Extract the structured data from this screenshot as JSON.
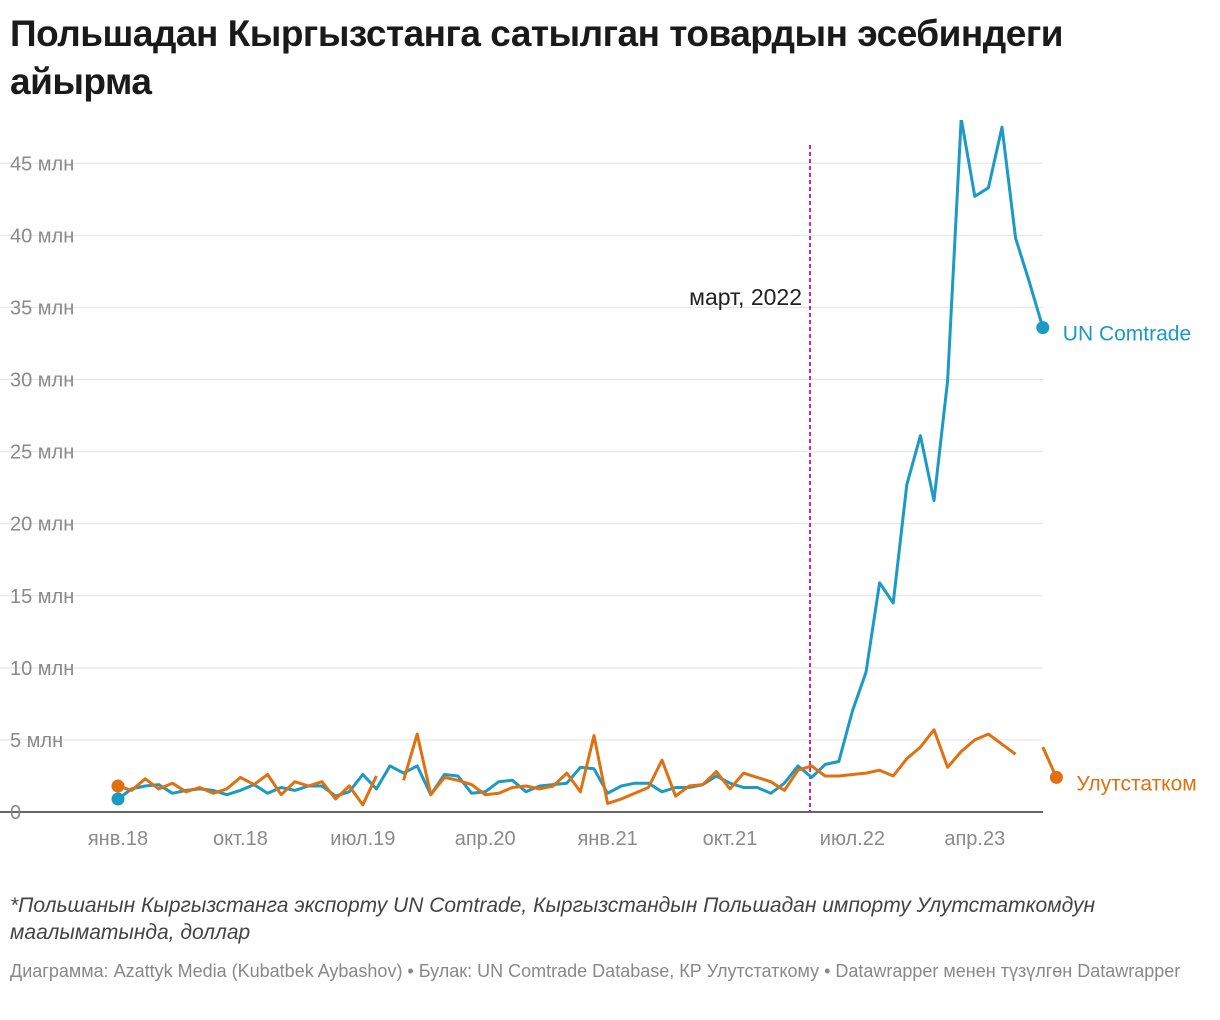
{
  "title": "Польшадан Кыргызстанга сатылган товардын эсебиндеги айырма",
  "footnote": "*Польшанын Кыргызстанга экспорту UN Comtrade, Кыргызстандын Польшадан импорту Улутстаткомдун маалыматында, доллар",
  "credit": "Диаграмма: Azattyk Media (Kubatbek Aybashov) • Булак: UN Comtrade Database, КР Улутстаткому • Datawrapper менен түзүлгөн Datawrapper",
  "chart_data": {
    "type": "line",
    "title": "Польшадан Кыргызстанга сатылган товардын эсебиндеги айырма",
    "ylabel": "",
    "xlabel": "",
    "ylim": [
      0,
      48
    ],
    "yticks": [
      0,
      5,
      10,
      15,
      20,
      25,
      30,
      35,
      40,
      45
    ],
    "ytick_labels": [
      "0",
      "5 млн",
      "10 млн",
      "15 млн",
      "20 млн",
      "25 млн",
      "30 млн",
      "35 млн",
      "40 млн",
      "45 млн"
    ],
    "x_start": "2018-01",
    "x_tick_labels": [
      "янв.18",
      "окт.18",
      "июл.19",
      "апр.20",
      "янв.21",
      "окт.21",
      "июл.22",
      "апр.23"
    ],
    "x_tick_index": [
      0,
      9,
      18,
      27,
      36,
      45,
      54,
      63
    ],
    "annotation": {
      "label": "март, 2022",
      "x_index": 50
    },
    "series": [
      {
        "name": "UN Comtrade",
        "color": "#1b9ac4",
        "values": [
          0.9,
          1.6,
          1.8,
          1.9,
          1.3,
          1.5,
          1.6,
          1.5,
          1.2,
          1.5,
          1.9,
          1.3,
          1.7,
          1.5,
          1.8,
          1.8,
          1.1,
          1.4,
          2.6,
          1.6,
          3.2,
          2.7,
          3.2,
          1.2,
          2.6,
          2.5,
          1.3,
          1.4,
          2.1,
          2.2,
          1.4,
          1.8,
          1.9,
          2.0,
          3.1,
          3.0,
          1.3,
          1.8,
          2.0,
          2.0,
          1.4,
          1.7,
          1.7,
          1.9,
          2.5,
          2.0,
          1.7,
          1.7,
          1.3,
          2.0,
          3.2,
          2.4,
          3.3,
          3.5,
          7.0,
          9.7,
          15.9,
          14.5,
          22.7,
          26.1,
          21.6,
          29.9,
          48.1,
          42.7,
          43.3,
          47.5,
          39.8,
          36.8,
          33.6
        ]
      },
      {
        "name": "Улутстатком",
        "color": "#e07010",
        "values": [
          1.8,
          1.5,
          2.3,
          1.6,
          2.0,
          1.4,
          1.7,
          1.3,
          1.6,
          2.4,
          1.9,
          2.6,
          1.2,
          2.1,
          1.8,
          2.1,
          0.9,
          1.8,
          0.5,
          2.5,
          null,
          2.2,
          5.4,
          1.2,
          2.4,
          2.2,
          1.9,
          1.2,
          1.3,
          1.7,
          1.8,
          1.6,
          1.8,
          2.7,
          1.4,
          5.3,
          0.6,
          0.9,
          1.3,
          1.7,
          3.6,
          1.1,
          1.8,
          1.9,
          2.8,
          1.6,
          2.7,
          2.4,
          2.1,
          1.5,
          2.9,
          3.2,
          2.5,
          2.5,
          2.6,
          2.7,
          2.9,
          2.5,
          3.7,
          4.5,
          5.7,
          3.1,
          4.2,
          5.0,
          5.4,
          4.7,
          4.0,
          null,
          4.5,
          2.4
        ]
      }
    ],
    "series_label_index": [
      68,
      69
    ]
  }
}
